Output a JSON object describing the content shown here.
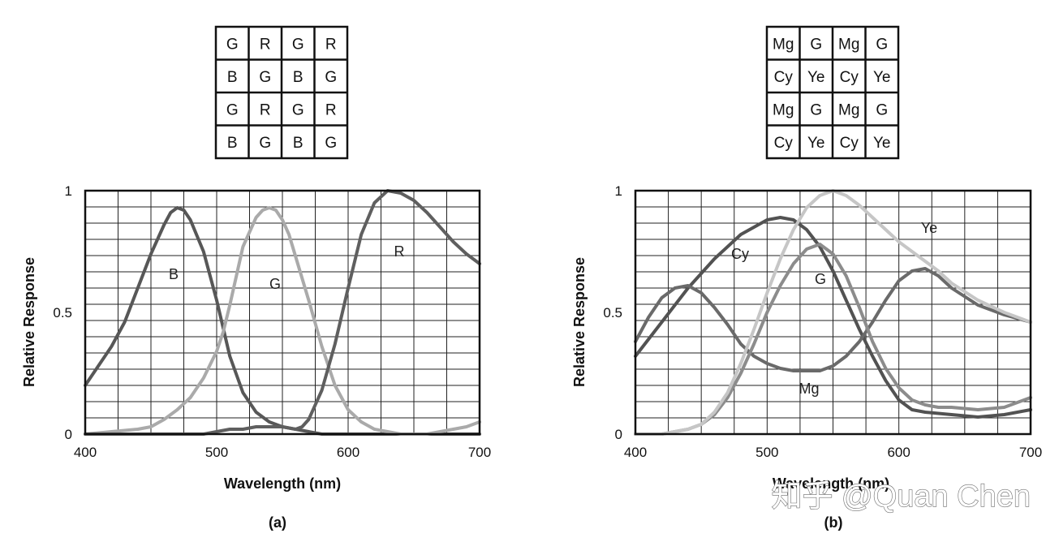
{
  "watermark": "知乎 @Quan Chen",
  "panels": [
    {
      "panel_label": "(a)",
      "cfa": [
        [
          "G",
          "R",
          "G",
          "R"
        ],
        [
          "B",
          "G",
          "B",
          "G"
        ],
        [
          "G",
          "R",
          "G",
          "R"
        ],
        [
          "B",
          "G",
          "B",
          "G"
        ]
      ]
    },
    {
      "panel_label": "(b)",
      "cfa": [
        [
          "Mg",
          "G",
          "Mg",
          "G"
        ],
        [
          "Cy",
          "Ye",
          "Cy",
          "Ye"
        ],
        [
          "Mg",
          "G",
          "Mg",
          "G"
        ],
        [
          "Cy",
          "Ye",
          "Cy",
          "Ye"
        ]
      ]
    }
  ],
  "chart_data": [
    {
      "type": "line",
      "xlabel": "Wavelength  (nm)",
      "ylabel": "Relative Response",
      "xlim": [
        400,
        700
      ],
      "ylim": [
        0,
        1
      ],
      "xticks": [
        "400",
        "500",
        "600",
        "700"
      ],
      "yticks": [
        "0",
        "0.5",
        "1"
      ],
      "grid": true,
      "series": [
        {
          "name": "B",
          "color": "#575757",
          "x": [
            400,
            410,
            420,
            430,
            440,
            450,
            460,
            465,
            470,
            475,
            480,
            490,
            500,
            510,
            520,
            530,
            540,
            550,
            560,
            570,
            580,
            590,
            600,
            620,
            650,
            680,
            700
          ],
          "y": [
            0.2,
            0.28,
            0.36,
            0.46,
            0.6,
            0.74,
            0.86,
            0.91,
            0.93,
            0.92,
            0.88,
            0.75,
            0.55,
            0.32,
            0.17,
            0.09,
            0.05,
            0.03,
            0.02,
            0.01,
            0.0,
            0.0,
            0.0,
            0.0,
            0.0,
            0.0,
            0.0
          ]
        },
        {
          "name": "G",
          "color": "#aaaaaa",
          "x": [
            400,
            420,
            440,
            450,
            460,
            470,
            480,
            490,
            500,
            505,
            510,
            515,
            520,
            530,
            535,
            540,
            545,
            550,
            555,
            560,
            570,
            580,
            590,
            600,
            610,
            620,
            630,
            640,
            650,
            660,
            670,
            680,
            690,
            700
          ],
          "y": [
            0.0,
            0.01,
            0.02,
            0.03,
            0.06,
            0.1,
            0.15,
            0.23,
            0.34,
            0.42,
            0.53,
            0.65,
            0.77,
            0.89,
            0.92,
            0.93,
            0.92,
            0.88,
            0.82,
            0.73,
            0.55,
            0.36,
            0.2,
            0.1,
            0.05,
            0.02,
            0.01,
            0.0,
            0.0,
            0.0,
            0.01,
            0.02,
            0.03,
            0.05
          ]
        },
        {
          "name": "R",
          "color": "#5f5f5f",
          "x": [
            400,
            480,
            490,
            500,
            510,
            520,
            530,
            540,
            550,
            560,
            565,
            570,
            580,
            590,
            600,
            610,
            620,
            630,
            640,
            650,
            660,
            670,
            680,
            690,
            700
          ],
          "y": [
            0.0,
            0.0,
            0.0,
            0.01,
            0.02,
            0.02,
            0.03,
            0.03,
            0.03,
            0.02,
            0.03,
            0.06,
            0.18,
            0.37,
            0.6,
            0.82,
            0.95,
            1.0,
            0.99,
            0.96,
            0.91,
            0.85,
            0.79,
            0.74,
            0.7
          ]
        }
      ],
      "annotations": [
        "B",
        "G",
        "R"
      ]
    },
    {
      "type": "line",
      "xlabel": "Wavelength  (nm)",
      "ylabel": "Relative Response",
      "xlim": [
        400,
        700
      ],
      "ylim": [
        0,
        1
      ],
      "xticks": [
        "400",
        "500",
        "600",
        "700"
      ],
      "yticks": [
        "0",
        "0.5",
        "1"
      ],
      "grid": true,
      "series": [
        {
          "name": "Cy",
          "color": "#525252",
          "x": [
            400,
            420,
            440,
            460,
            480,
            500,
            510,
            520,
            530,
            540,
            550,
            560,
            570,
            580,
            590,
            600,
            610,
            620,
            640,
            660,
            680,
            700
          ],
          "y": [
            0.32,
            0.46,
            0.6,
            0.72,
            0.82,
            0.88,
            0.89,
            0.88,
            0.84,
            0.77,
            0.67,
            0.55,
            0.43,
            0.32,
            0.22,
            0.14,
            0.1,
            0.09,
            0.08,
            0.07,
            0.08,
            0.1
          ]
        },
        {
          "name": "Mg",
          "color": "#6a6a6a",
          "x": [
            400,
            410,
            420,
            430,
            440,
            450,
            460,
            470,
            480,
            490,
            500,
            510,
            520,
            530,
            540,
            550,
            560,
            570,
            580,
            590,
            600,
            610,
            620,
            630,
            640,
            660,
            680,
            700
          ],
          "y": [
            0.38,
            0.48,
            0.56,
            0.6,
            0.61,
            0.58,
            0.52,
            0.45,
            0.37,
            0.32,
            0.29,
            0.27,
            0.26,
            0.26,
            0.26,
            0.28,
            0.32,
            0.38,
            0.46,
            0.55,
            0.63,
            0.67,
            0.68,
            0.65,
            0.6,
            0.53,
            0.49,
            0.46
          ]
        },
        {
          "name": "G",
          "color": "#8c8c8c",
          "x": [
            400,
            420,
            430,
            440,
            450,
            460,
            470,
            480,
            490,
            500,
            510,
            520,
            530,
            540,
            550,
            560,
            570,
            580,
            590,
            600,
            610,
            620,
            630,
            640,
            660,
            680,
            700
          ],
          "y": [
            0.0,
            0.0,
            0.01,
            0.02,
            0.04,
            0.08,
            0.15,
            0.25,
            0.37,
            0.5,
            0.61,
            0.7,
            0.76,
            0.78,
            0.74,
            0.65,
            0.52,
            0.38,
            0.27,
            0.19,
            0.14,
            0.12,
            0.11,
            0.11,
            0.1,
            0.11,
            0.15
          ]
        },
        {
          "name": "Ye",
          "color": "#c6c6c6",
          "x": [
            400,
            420,
            430,
            440,
            450,
            460,
            470,
            480,
            490,
            500,
            510,
            520,
            530,
            540,
            550,
            560,
            570,
            580,
            590,
            600,
            610,
            620,
            630,
            640,
            660,
            680,
            700
          ],
          "y": [
            0.0,
            0.0,
            0.01,
            0.02,
            0.04,
            0.09,
            0.17,
            0.29,
            0.43,
            0.58,
            0.72,
            0.84,
            0.93,
            0.98,
            1.0,
            0.98,
            0.94,
            0.89,
            0.84,
            0.79,
            0.75,
            0.71,
            0.67,
            0.62,
            0.55,
            0.5,
            0.46
          ]
        }
      ],
      "annotations": [
        "Cy",
        "Mg",
        "G",
        "Ye"
      ]
    }
  ]
}
